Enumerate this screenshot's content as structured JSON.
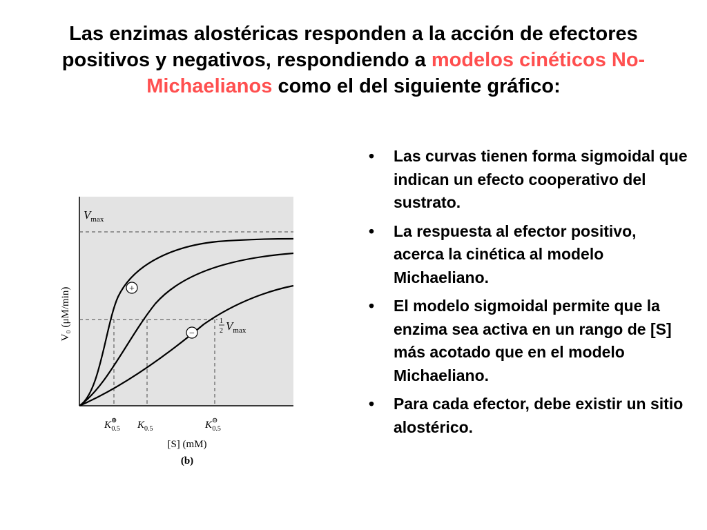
{
  "title": {
    "part1": "Las enzimas alostéricas responden a la acción de efectores positivos y negativos, respondiendo a",
    "highlight": "modelos cinéticos No-Michaelianos",
    "part2": "como el del siguiente gráfico:",
    "highlight_color": "#ff4f4f"
  },
  "bullets": [
    "Las curvas tienen forma sigmoidal que indican un efecto cooperativo del sustrato.",
    "La respuesta al efector positivo, acerca la cinética al modelo Michaeliano.",
    "El modelo sigmoidal permite que la enzima sea activa en un rango de [S] más acotado que en el modelo Michaeliano.",
    "Para cada efector, debe existir un sitio alostérico."
  ],
  "bullet_symbol": "•",
  "figure": {
    "vmax_label": "V",
    "vmax_sub": "max",
    "half_vmax_num": "1",
    "half_vmax_den": "2",
    "half_vmax_V": "V",
    "half_vmax_sub": "max",
    "y_axis_label": "V₀ (μM/min)",
    "x_axis_label": "[S] (mM)",
    "panel_label": "(b)",
    "plus_marker": "+",
    "minus_marker": "−",
    "k_plus": "K",
    "k_plus_sub": "0.5",
    "k_plus_sup": "⊕",
    "k_mid": "K",
    "k_mid_sub": "0.5",
    "k_minus": "K",
    "k_minus_sub": "0.5",
    "k_minus_sup": "⊖",
    "plot_bg": "#e3e3e3"
  }
}
